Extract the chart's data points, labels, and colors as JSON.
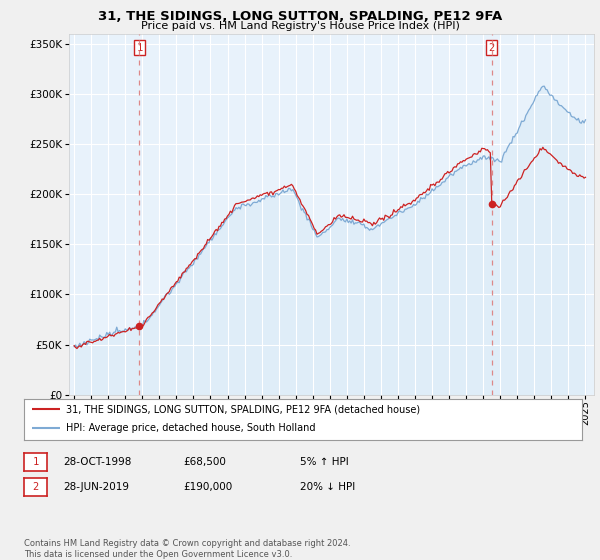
{
  "title1": "31, THE SIDINGS, LONG SUTTON, SPALDING, PE12 9FA",
  "title2": "Price paid vs. HM Land Registry's House Price Index (HPI)",
  "legend_line1": "31, THE SIDINGS, LONG SUTTON, SPALDING, PE12 9FA (detached house)",
  "legend_line2": "HPI: Average price, detached house, South Holland",
  "footnote": "Contains HM Land Registry data © Crown copyright and database right 2024.\nThis data is licensed under the Open Government Licence v3.0.",
  "transaction1": {
    "num": "1",
    "date": "28-OCT-1998",
    "price": "£68,500",
    "hpi": "5% ↑ HPI"
  },
  "transaction2": {
    "num": "2",
    "date": "28-JUN-2019",
    "price": "£190,000",
    "hpi": "20% ↓ HPI"
  },
  "vline1_x": 1998.83,
  "vline2_x": 2019.49,
  "dot1_x": 1998.83,
  "dot1_y": 68500,
  "dot2_x": 2019.49,
  "dot2_y": 190000,
  "hpi_color": "#7eaad4",
  "hpi_fill_color": "#daeaf7",
  "price_color": "#cc2222",
  "vline_color": "#dd8888",
  "dot_color": "#cc2222",
  "background_color": "#f0f0f0",
  "plot_bg_color": "#e8f2fb",
  "ylim": [
    0,
    360000
  ],
  "xlim": [
    1994.7,
    2025.5
  ],
  "box_color": "#cc2222"
}
